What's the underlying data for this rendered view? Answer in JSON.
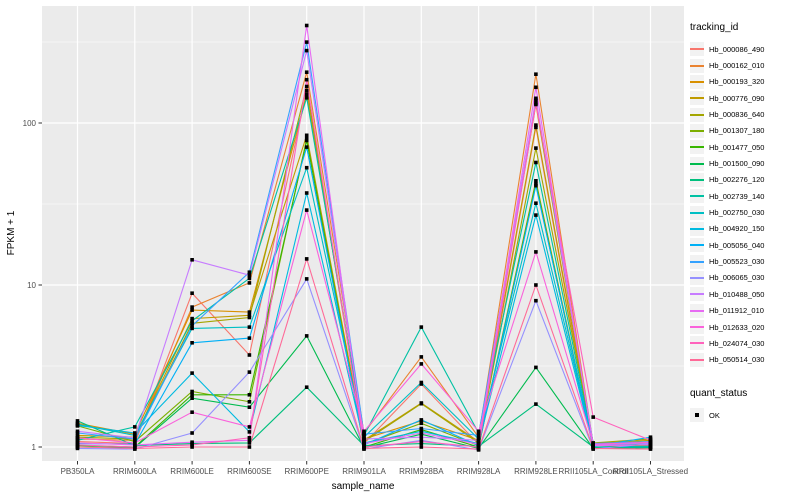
{
  "figure": {
    "y_axis_title": "FPKM + 1",
    "x_axis_title": "sample_name",
    "legend": {
      "tracking_title": "tracking_id",
      "quant_title": "quant_status",
      "quant_label": "OK"
    }
  },
  "chart_data": {
    "type": "line",
    "title": "",
    "xlabel": "sample_name",
    "ylabel": "FPKM + 1",
    "y_scale": "log10",
    "yticks": [
      1,
      10,
      100
    ],
    "ylim": [
      0.85,
      525
    ],
    "grid": true,
    "panel_color": "#EBEBEB",
    "gridline_color": "#FFFFFF",
    "marker": "small-black-square",
    "legend_position": "right",
    "legend_titles": [
      "tracking_id",
      "quant_status"
    ],
    "quant_status_value": "OK",
    "x": [
      "PB350LA",
      "RRIM600LA",
      "RRIM600LE",
      "RRIM600SE",
      "RRIM600PE",
      "RRIM901LA",
      "RRIM928BA",
      "RRIM928LA",
      "RRIM928LE",
      "RRII105LA_Control",
      "RRII105LA_Stressed"
    ],
    "series": [
      {
        "name": "Hb_000086_490",
        "color": "#F8766D",
        "values": [
          1.08,
          1.05,
          8.9,
          3.7,
          158,
          1.05,
          2.45,
          1.04,
          94,
          1.0,
          1.0
        ]
      },
      {
        "name": "Hb_000162_010",
        "color": "#EA8331",
        "values": [
          1.12,
          1.1,
          7.3,
          10.3,
          206,
          1.22,
          3.6,
          1.15,
          200,
          1.04,
          1.05
        ]
      },
      {
        "name": "Hb_000193_320",
        "color": "#D89000",
        "values": [
          1.4,
          1.2,
          7.0,
          6.8,
          150,
          1.12,
          1.45,
          1.1,
          130,
          1.02,
          1.03
        ]
      },
      {
        "name": "Hb_000776_090",
        "color": "#C09B00",
        "values": [
          1.18,
          1.15,
          6.2,
          6.5,
          84,
          1.1,
          1.87,
          1.08,
          97,
          1.05,
          1.1
        ]
      },
      {
        "name": "Hb_000836_640",
        "color": "#A3A500",
        "values": [
          1.15,
          1.12,
          5.8,
          6.3,
          168,
          1.08,
          1.85,
          1.06,
          70,
          1.06,
          1.12
        ]
      },
      {
        "name": "Hb_001307_180",
        "color": "#7CAE00",
        "values": [
          1.35,
          1.08,
          2.2,
          1.9,
          80,
          1.04,
          1.4,
          1.02,
          44,
          1.0,
          1.02
        ]
      },
      {
        "name": "Hb_001477_050",
        "color": "#39B600",
        "values": [
          1.02,
          1.0,
          2.1,
          2.1,
          78,
          1.0,
          1.28,
          1.0,
          42,
          0.99,
          1.0
        ]
      },
      {
        "name": "Hb_001500_090",
        "color": "#00BB4E",
        "values": [
          1.0,
          0.99,
          2.0,
          1.76,
          4.85,
          0.99,
          1.2,
          0.98,
          3.1,
          0.98,
          0.99
        ]
      },
      {
        "name": "Hb_002276_120",
        "color": "#00BF7D",
        "values": [
          1.45,
          1.02,
          1.05,
          1.06,
          2.34,
          1.02,
          1.05,
          1.01,
          1.84,
          1.0,
          1.01
        ]
      },
      {
        "name": "Hb_002739_140",
        "color": "#00C1A3",
        "values": [
          1.1,
          1.33,
          6.0,
          11.0,
          143,
          1.18,
          5.5,
          1.22,
          57,
          1.03,
          1.06
        ]
      },
      {
        "name": "Hb_002750_030",
        "color": "#00BFC4",
        "values": [
          1.38,
          1.18,
          5.4,
          5.5,
          53,
          1.15,
          2.5,
          1.12,
          32,
          1.02,
          1.04
        ]
      },
      {
        "name": "Hb_004920_150",
        "color": "#00BAE0",
        "values": [
          1.36,
          1.22,
          2.86,
          1.24,
          37,
          1.06,
          1.25,
          1.05,
          27,
          1.0,
          1.0
        ]
      },
      {
        "name": "Hb_005056_040",
        "color": "#00B0F6",
        "values": [
          1.05,
          1.04,
          4.4,
          4.7,
          71,
          1.03,
          1.47,
          1.02,
          41,
          1.01,
          1.15
        ]
      },
      {
        "name": "Hb_005523_030",
        "color": "#35A2FF",
        "values": [
          1.22,
          1.12,
          5.6,
          12.0,
          316,
          1.2,
          1.3,
          1.18,
          138,
          1.05,
          1.08
        ]
      },
      {
        "name": "Hb_006065_030",
        "color": "#9590FF",
        "values": [
          0.98,
          0.97,
          1.22,
          2.9,
          10.9,
          0.97,
          1.1,
          0.96,
          8,
          0.97,
          1.05
        ]
      },
      {
        "name": "Hb_010488_050",
        "color": "#C77CFF",
        "values": [
          1.25,
          1.14,
          14.3,
          11.5,
          280,
          1.12,
          1.15,
          1.1,
          142,
          1.03,
          1.06
        ]
      },
      {
        "name": "Hb_011912_010",
        "color": "#E76BF3",
        "values": [
          1.06,
          1.03,
          1.07,
          1.1,
          400,
          1.05,
          1.22,
          1.04,
          166,
          1.02,
          1.03
        ]
      },
      {
        "name": "Hb_012633_020",
        "color": "#FA62DB",
        "values": [
          1.14,
          1.06,
          1.64,
          1.33,
          29,
          1.25,
          3.26,
          1.25,
          16,
          1.04,
          1.07
        ]
      },
      {
        "name": "Hb_024074_030",
        "color": "#FF62BC",
        "values": [
          1.03,
          1.0,
          1.03,
          1.14,
          185,
          1.0,
          1.08,
          1.0,
          132,
          1.53,
          1.1
        ]
      },
      {
        "name": "Hb_050514_030",
        "color": "#FF6A98",
        "values": [
          1.0,
          0.98,
          1.0,
          1.0,
          14.5,
          0.98,
          1.0,
          0.97,
          10,
          0.98,
          0.97
        ]
      }
    ]
  }
}
